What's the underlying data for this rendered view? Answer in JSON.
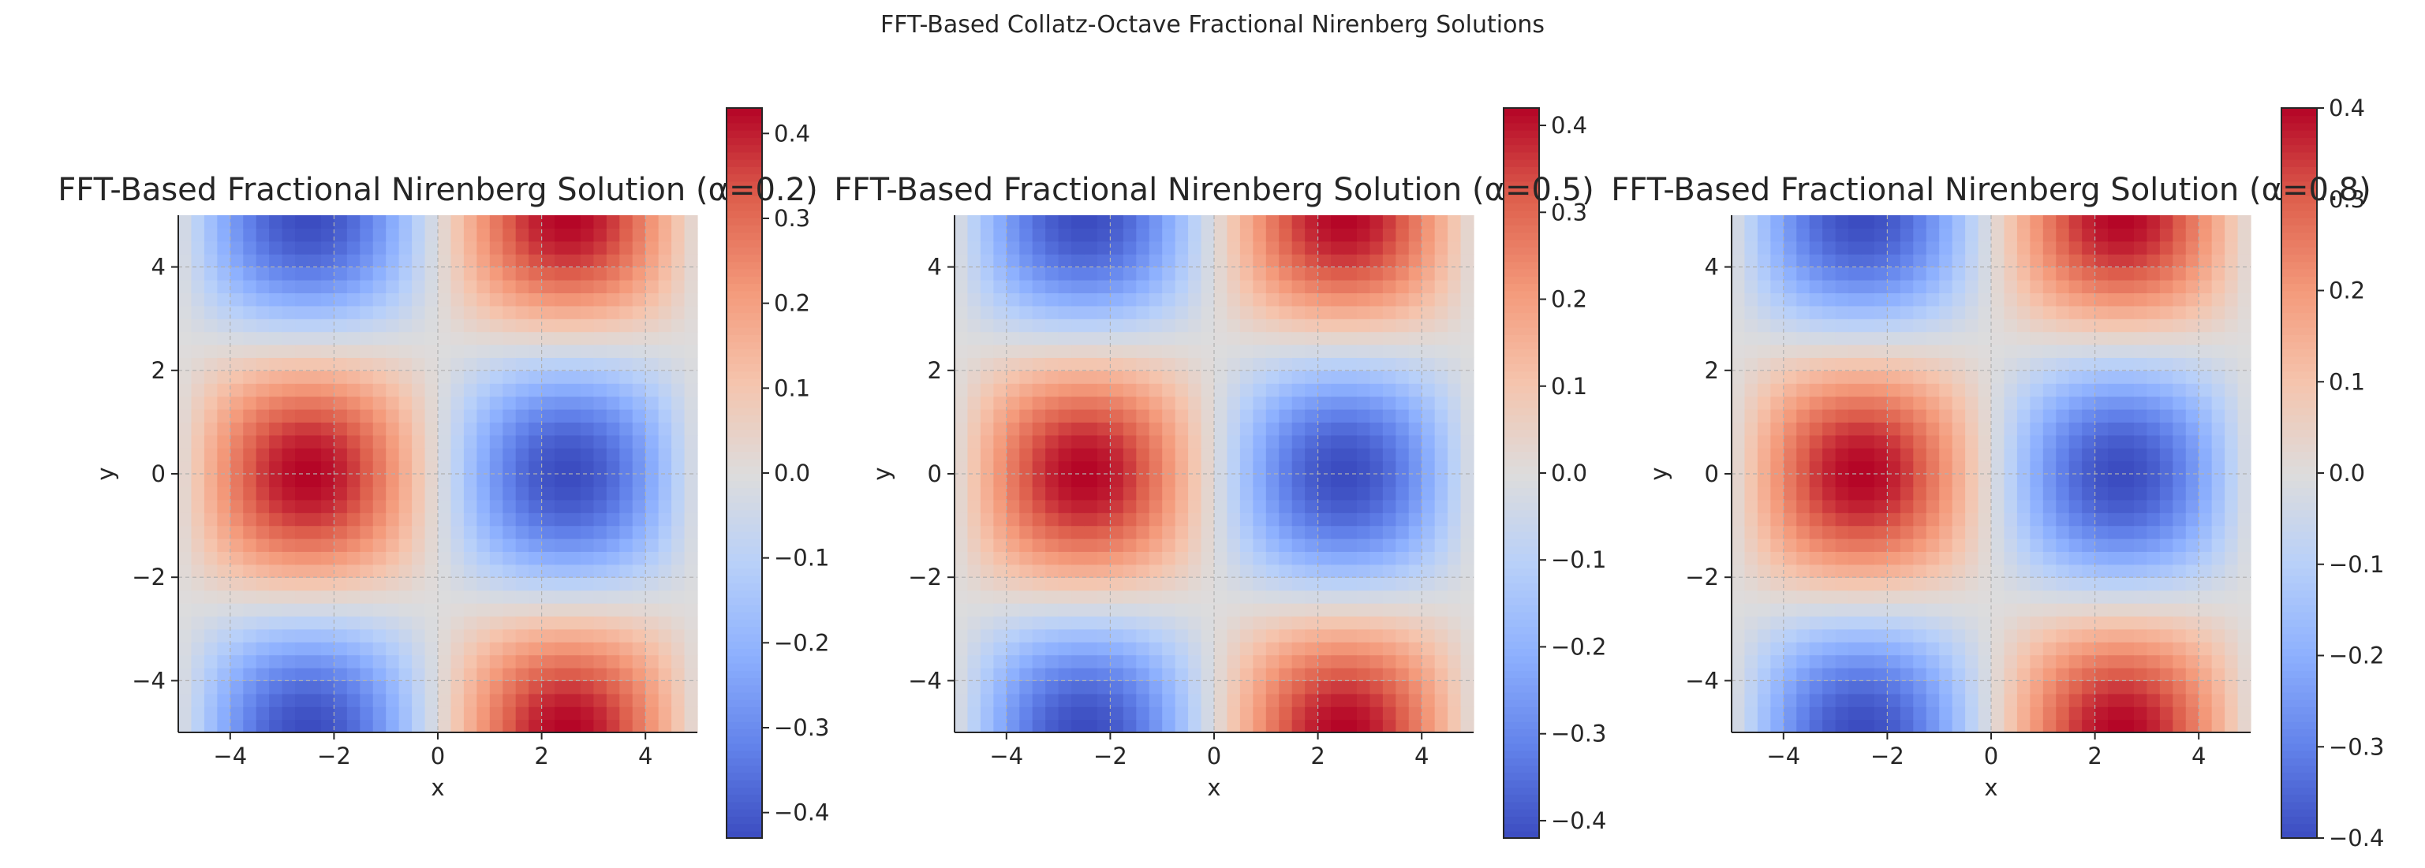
{
  "figure": {
    "suptitle": "FFT-Based Collatz-Octave Fractional Nirenberg Solutions"
  },
  "chart_data": [
    {
      "type": "heatmap",
      "title": "FFT-Based Fractional Nirenberg Solution (α=0.2)",
      "xlabel": "x",
      "ylabel": "y",
      "xlim": [
        -5,
        5
      ],
      "ylim": [
        -5,
        5
      ],
      "x_ticks": [
        -4,
        -2,
        0,
        2,
        4
      ],
      "y_ticks": [
        -4,
        -2,
        0,
        2,
        4
      ],
      "x_tick_labels": [
        "−4",
        "−2",
        "0",
        "2",
        "4"
      ],
      "y_tick_labels": [
        "−4",
        "−2",
        "0",
        "2",
        "4"
      ],
      "grid": true,
      "colormap": "coolwarm",
      "field": "-0.43 * sin(0.628 * x) * cos(0.628 * y) on a 40x40 grid",
      "grid_size": 40,
      "amplitude": 0.43,
      "wavenumber": 0.628,
      "colorbar": {
        "min": -0.43,
        "max": 0.43,
        "ticks": [
          -0.4,
          -0.3,
          -0.2,
          -0.1,
          0.0,
          0.1,
          0.2,
          0.3,
          0.4
        ],
        "tick_labels": [
          "−0.4",
          "−0.3",
          "−0.2",
          "−0.1",
          "0.0",
          "0.1",
          "0.2",
          "0.3",
          "0.4"
        ]
      }
    },
    {
      "type": "heatmap",
      "title": "FFT-Based Fractional Nirenberg Solution (α=0.5)",
      "xlabel": "x",
      "ylabel": "y",
      "xlim": [
        -5,
        5
      ],
      "ylim": [
        -5,
        5
      ],
      "x_ticks": [
        -4,
        -2,
        0,
        2,
        4
      ],
      "y_ticks": [
        -4,
        -2,
        0,
        2,
        4
      ],
      "x_tick_labels": [
        "−4",
        "−2",
        "0",
        "2",
        "4"
      ],
      "y_tick_labels": [
        "−4",
        "−2",
        "0",
        "2",
        "4"
      ],
      "grid": true,
      "colormap": "coolwarm",
      "field": "-0.42 * sin(0.628 * x) * cos(0.628 * y) on a 40x40 grid",
      "grid_size": 40,
      "amplitude": 0.42,
      "wavenumber": 0.628,
      "colorbar": {
        "min": -0.42,
        "max": 0.42,
        "ticks": [
          -0.4,
          -0.3,
          -0.2,
          -0.1,
          0.0,
          0.1,
          0.2,
          0.3,
          0.4
        ],
        "tick_labels": [
          "−0.4",
          "−0.3",
          "−0.2",
          "−0.1",
          "0.0",
          "0.1",
          "0.2",
          "0.3",
          "0.4"
        ]
      }
    },
    {
      "type": "heatmap",
      "title": "FFT-Based Fractional Nirenberg Solution (α=0.8)",
      "xlabel": "x",
      "ylabel": "y",
      "xlim": [
        -5,
        5
      ],
      "ylim": [
        -5,
        5
      ],
      "x_ticks": [
        -4,
        -2,
        0,
        2,
        4
      ],
      "y_ticks": [
        -4,
        -2,
        0,
        2,
        4
      ],
      "x_tick_labels": [
        "−4",
        "−2",
        "0",
        "2",
        "4"
      ],
      "y_tick_labels": [
        "−4",
        "−2",
        "0",
        "2",
        "4"
      ],
      "grid": true,
      "colormap": "coolwarm",
      "field": "-0.40 * sin(0.628 * x) * cos(0.628 * y) on a 40x40 grid",
      "grid_size": 40,
      "amplitude": 0.4,
      "wavenumber": 0.628,
      "colorbar": {
        "min": -0.4,
        "max": 0.4,
        "ticks": [
          -0.4,
          -0.3,
          -0.2,
          -0.1,
          0.0,
          0.1,
          0.2,
          0.3,
          0.4
        ],
        "tick_labels": [
          "−0.4",
          "−0.3",
          "−0.2",
          "−0.1",
          "0.0",
          "0.1",
          "0.2",
          "0.3",
          "0.4"
        ]
      }
    }
  ]
}
